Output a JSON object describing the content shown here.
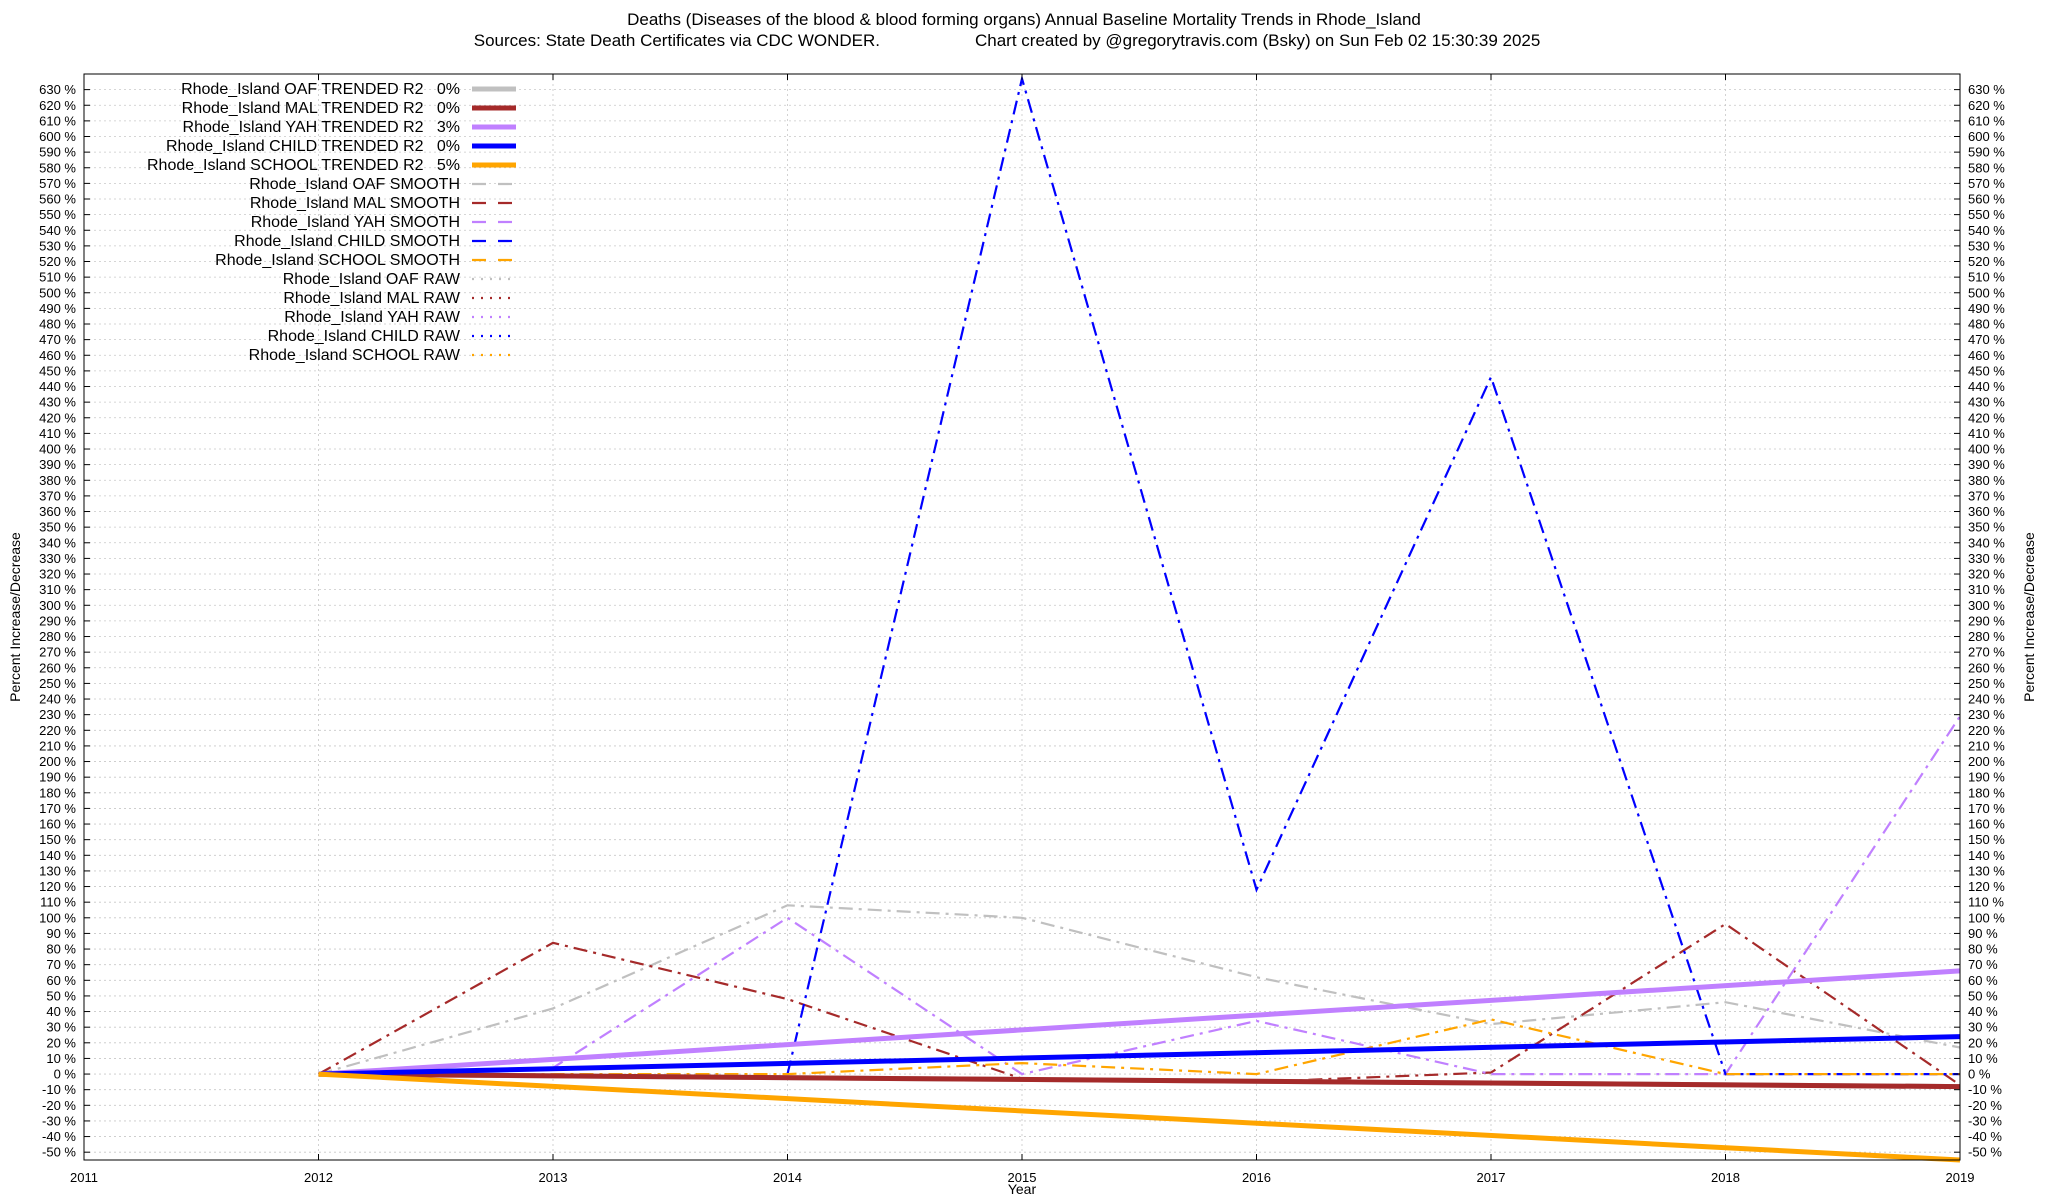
{
  "chart_data": {
    "type": "line",
    "title": "Deaths (Diseases of the blood & blood forming organs)  Annual Baseline Mortality Trends in Rhode_Island",
    "subtitle_left": "Sources: State Death Certificates via CDC WONDER.",
    "subtitle_right": "Chart created by @gregorytravis.com (Bsky) on Sun Feb 02 15:30:39 2025",
    "xlabel": "Year",
    "ylabel": "Percent Increase/Decrease",
    "ylabel_right": "Percent Increase/Decrease",
    "xlim": [
      2011,
      2019
    ],
    "ylim": [
      -55,
      640
    ],
    "x_ticks": [
      2011,
      2012,
      2013,
      2014,
      2015,
      2016,
      2017,
      2018,
      2019
    ],
    "y_ticks": [
      -50,
      -40,
      -30,
      -20,
      -10,
      0,
      10,
      20,
      30,
      40,
      50,
      60,
      70,
      80,
      90,
      100,
      110,
      120,
      130,
      140,
      150,
      160,
      170,
      180,
      190,
      200,
      210,
      220,
      230,
      240,
      250,
      260,
      270,
      280,
      290,
      300,
      310,
      320,
      330,
      340,
      350,
      360,
      370,
      380,
      390,
      400,
      410,
      420,
      430,
      440,
      450,
      460,
      470,
      480,
      490,
      500,
      510,
      520,
      530,
      540,
      550,
      560,
      570,
      580,
      590,
      600,
      610,
      620,
      630
    ],
    "y_tick_suffix": " %",
    "grid": true,
    "legend_position": "top-left",
    "series": [
      {
        "name": "Rhode_Island OAF TRENDED R2   0%",
        "style": "trend",
        "color": "#c0c0c0",
        "x": [
          2012,
          2019
        ],
        "y": [
          0,
          -8
        ]
      },
      {
        "name": "Rhode_Island MAL TRENDED R2   0%",
        "style": "trend",
        "color": "#a52a2a",
        "x": [
          2012,
          2019
        ],
        "y": [
          0,
          -8
        ]
      },
      {
        "name": "Rhode_Island YAH TRENDED R2   3%",
        "style": "trend",
        "color": "#c080ff",
        "x": [
          2012,
          2019
        ],
        "y": [
          0,
          66
        ]
      },
      {
        "name": "Rhode_Island CHILD TRENDED R2   0%",
        "style": "trend",
        "color": "#0000ff",
        "x": [
          2012,
          2019
        ],
        "y": [
          0,
          24
        ]
      },
      {
        "name": "Rhode_Island SCHOOL TRENDED R2   5%",
        "style": "trend",
        "color": "#ffa500",
        "x": [
          2012,
          2019
        ],
        "y": [
          0,
          -55
        ]
      },
      {
        "name": "Rhode_Island OAF SMOOTH",
        "style": "smooth",
        "color": "#c0c0c0",
        "x": [
          2012,
          2013,
          2014,
          2015,
          2016,
          2017,
          2018,
          2019
        ],
        "y": [
          0,
          42,
          108,
          100,
          62,
          32,
          46,
          17
        ]
      },
      {
        "name": "Rhode_Island MAL SMOOTH",
        "style": "smooth",
        "color": "#a52a2a",
        "x": [
          2012,
          2013,
          2014,
          2015,
          2016,
          2017,
          2018,
          2019
        ],
        "y": [
          0,
          84,
          48,
          -3,
          -5,
          1,
          96,
          -7
        ]
      },
      {
        "name": "Rhode_Island YAH SMOOTH",
        "style": "smooth",
        "color": "#c080ff",
        "x": [
          2012,
          2013,
          2014,
          2015,
          2016,
          2017,
          2018,
          2019
        ],
        "y": [
          0,
          4,
          100,
          0,
          34,
          0,
          0,
          229
        ]
      },
      {
        "name": "Rhode_Island CHILD SMOOTH",
        "style": "smooth",
        "color": "#0000ff",
        "x": [
          2014,
          2015,
          2016,
          2017,
          2018,
          2019
        ],
        "y": [
          0,
          637,
          118,
          446,
          0,
          0
        ]
      },
      {
        "name": "Rhode_Island SCHOOL SMOOTH",
        "style": "smooth",
        "color": "#ffa500",
        "x": [
          2012,
          2013,
          2014,
          2015,
          2016,
          2017,
          2018,
          2019
        ],
        "y": [
          0,
          0,
          0,
          7,
          0,
          35,
          0,
          0
        ]
      },
      {
        "name": "Rhode_Island OAF RAW",
        "style": "raw",
        "color": "#c0c0c0",
        "x": [],
        "y": []
      },
      {
        "name": "Rhode_Island MAL RAW",
        "style": "raw",
        "color": "#a52a2a",
        "x": [],
        "y": []
      },
      {
        "name": "Rhode_Island YAH RAW",
        "style": "raw",
        "color": "#c080ff",
        "x": [],
        "y": []
      },
      {
        "name": "Rhode_Island CHILD RAW",
        "style": "raw",
        "color": "#0000ff",
        "x": [],
        "y": []
      },
      {
        "name": "Rhode_Island SCHOOL RAW",
        "style": "raw",
        "color": "#ffa500",
        "x": [],
        "y": []
      }
    ]
  }
}
